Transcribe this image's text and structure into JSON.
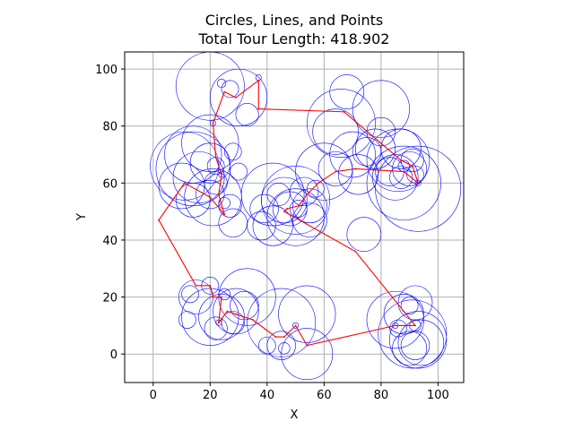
{
  "chart_data": {
    "type": "scatter",
    "title": "Circles, Lines, and Points",
    "subtitle": "Total Tour Length: 418.902",
    "xlabel": "X",
    "ylabel": "Y",
    "xlim": [
      -10,
      109
    ],
    "ylim": [
      -10,
      106
    ],
    "xticks": [
      0,
      20,
      40,
      60,
      80,
      100
    ],
    "yticks": [
      0,
      20,
      40,
      60,
      80,
      100
    ],
    "grid": true,
    "colors": {
      "circle": "#0000ff",
      "tour": "#ff0000",
      "grid": "#b0b0b0"
    },
    "tour": [
      [
        2,
        47
      ],
      [
        11,
        60
      ],
      [
        20,
        55
      ],
      [
        25,
        49
      ],
      [
        23,
        56
      ],
      [
        24,
        63
      ],
      [
        22,
        69
      ],
      [
        21,
        81
      ],
      [
        25,
        92
      ],
      [
        29,
        90
      ],
      [
        37,
        96
      ],
      [
        37,
        86
      ],
      [
        67,
        85
      ],
      [
        87,
        68
      ],
      [
        91,
        66
      ],
      [
        93,
        60
      ],
      [
        88,
        64
      ],
      [
        71,
        65
      ],
      [
        64,
        64
      ],
      [
        58,
        60
      ],
      [
        54,
        56
      ],
      [
        51,
        52
      ],
      [
        47,
        51
      ],
      [
        46,
        50
      ],
      [
        71,
        36
      ],
      [
        92,
        10
      ],
      [
        85,
        10
      ],
      [
        54,
        3
      ],
      [
        50,
        10
      ],
      [
        46,
        6
      ],
      [
        43,
        6
      ],
      [
        35,
        12
      ],
      [
        29,
        14
      ],
      [
        26,
        15
      ],
      [
        23,
        11
      ],
      [
        24,
        20
      ],
      [
        21,
        20
      ],
      [
        20,
        24
      ],
      [
        15,
        24
      ],
      [
        2,
        47
      ]
    ],
    "circles": [
      [
        20,
        94,
        12
      ],
      [
        30,
        90,
        10
      ],
      [
        24,
        95,
        1.5
      ],
      [
        33,
        84,
        4
      ],
      [
        37,
        97,
        1
      ],
      [
        27,
        93,
        3
      ],
      [
        11,
        66,
        12
      ],
      [
        14,
        65,
        13
      ],
      [
        20,
        74,
        10
      ],
      [
        14,
        70,
        10
      ],
      [
        20,
        67,
        7
      ],
      [
        28,
        71,
        3
      ],
      [
        22,
        66,
        3
      ],
      [
        21,
        55,
        10
      ],
      [
        27,
        52,
        4
      ],
      [
        10,
        59,
        8
      ],
      [
        14,
        54,
        6
      ],
      [
        16,
        62,
        9
      ],
      [
        22,
        60,
        4
      ],
      [
        30,
        64,
        3
      ],
      [
        20,
        56,
        5
      ],
      [
        25,
        53,
        2
      ],
      [
        28,
        46,
        5
      ],
      [
        24,
        63,
        1
      ],
      [
        21,
        81,
        1
      ],
      [
        42,
        56,
        11
      ],
      [
        50,
        54,
        12
      ],
      [
        50,
        48,
        10
      ],
      [
        46,
        54,
        8
      ],
      [
        48,
        51,
        6
      ],
      [
        53,
        57,
        5
      ],
      [
        55,
        52,
        6
      ],
      [
        51,
        51,
        3
      ],
      [
        39,
        51,
        5
      ],
      [
        42,
        45,
        7
      ],
      [
        55,
        47,
        6
      ],
      [
        44,
        56,
        4
      ],
      [
        38,
        45,
        5
      ],
      [
        57,
        58,
        3
      ],
      [
        66,
        81,
        12
      ],
      [
        68,
        92,
        6
      ],
      [
        80,
        86,
        10
      ],
      [
        64,
        78,
        8
      ],
      [
        70,
        70,
        8
      ],
      [
        78,
        72,
        7
      ],
      [
        60,
        64,
        10
      ],
      [
        64,
        65,
        6
      ],
      [
        72,
        63,
        7
      ],
      [
        75,
        71,
        5
      ],
      [
        80,
        78,
        5
      ],
      [
        86,
        68,
        11
      ],
      [
        88,
        60,
        13
      ],
      [
        93,
        58,
        15
      ],
      [
        87,
        72,
        7
      ],
      [
        85,
        62,
        8
      ],
      [
        90,
        65,
        6
      ],
      [
        91,
        68,
        4
      ],
      [
        83,
        64,
        5
      ],
      [
        92,
        63,
        3
      ],
      [
        87,
        62,
        4
      ],
      [
        88,
        66,
        2
      ],
      [
        93,
        60,
        1
      ],
      [
        74,
        42,
        6
      ],
      [
        20,
        13,
        10
      ],
      [
        24,
        13,
        8
      ],
      [
        33,
        20,
        10
      ],
      [
        29,
        15,
        8
      ],
      [
        22,
        9,
        4
      ],
      [
        25,
        21,
        2
      ],
      [
        20,
        24,
        3
      ],
      [
        15,
        20,
        6
      ],
      [
        13,
        21,
        3
      ],
      [
        28,
        11,
        4
      ],
      [
        32,
        17,
        5
      ],
      [
        23,
        11,
        1
      ],
      [
        12,
        12,
        3
      ],
      [
        45,
        11,
        12
      ],
      [
        54,
        14,
        10
      ],
      [
        54,
        0,
        9
      ],
      [
        45,
        3,
        5
      ],
      [
        40,
        3,
        3
      ],
      [
        46,
        2,
        2
      ],
      [
        50,
        10,
        1
      ],
      [
        85,
        12,
        10
      ],
      [
        91,
        7,
        12
      ],
      [
        92,
        18,
        6
      ],
      [
        93,
        5,
        10
      ],
      [
        88,
        14,
        7
      ],
      [
        94,
        4,
        8
      ],
      [
        90,
        2,
        6
      ],
      [
        86,
        9,
        3
      ],
      [
        92,
        3,
        5
      ],
      [
        90,
        17,
        3
      ],
      [
        92,
        10,
        2
      ],
      [
        85,
        10,
        1
      ]
    ]
  }
}
